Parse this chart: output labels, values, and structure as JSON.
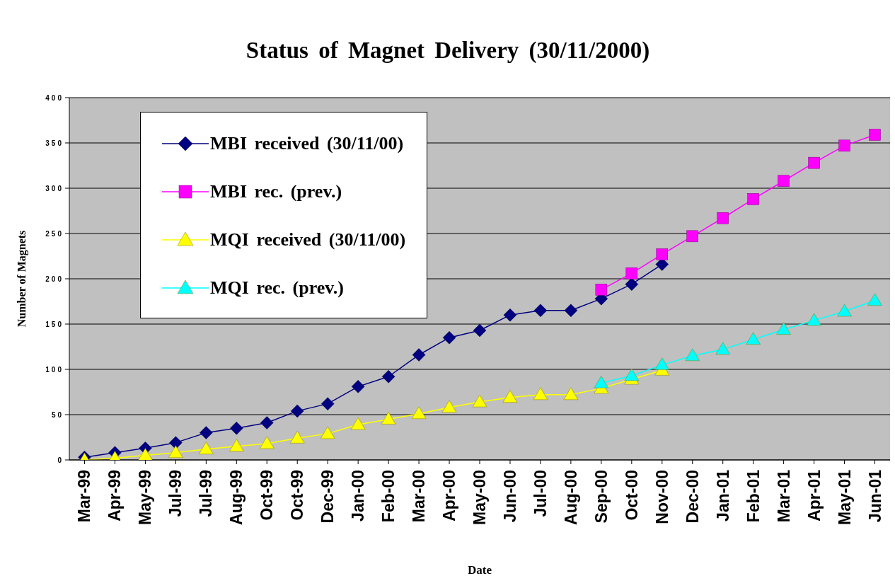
{
  "chart_data": {
    "type": "line",
    "title": "Status of Magnet Delivery (30/11/2000)",
    "xlabel": "Date",
    "ylabel": "Number of Magnets",
    "categories": [
      "Mar-99",
      "Apr-99",
      "May-99",
      "Jul-99",
      "Jul-99",
      "Aug-99",
      "Oct-99",
      "Oct-99",
      "Dec-99",
      "Jan-00",
      "Feb-00",
      "Mar-00",
      "Apr-00",
      "May-00",
      "Jun-00",
      "Jul-00",
      "Aug-00",
      "Sep-00",
      "Oct-00",
      "Nov-00",
      "Dec-00",
      "Jan-01",
      "Feb-01",
      "Mar-01",
      "Apr-01",
      "May-01",
      "Jun-01"
    ],
    "series": [
      {
        "name": "MBI received (30/11/00)",
        "color": "#000080",
        "marker": "diamond",
        "values": [
          3,
          8,
          13,
          19,
          30,
          35,
          41,
          54,
          62,
          81,
          92,
          116,
          135,
          143,
          160,
          165,
          165,
          178,
          194,
          216,
          null,
          null,
          null,
          null,
          null,
          null,
          null
        ]
      },
      {
        "name": "MBI rec. (prev.)",
        "color": "#ff00ff",
        "marker": "square",
        "values": [
          null,
          null,
          null,
          null,
          null,
          null,
          null,
          null,
          null,
          null,
          null,
          null,
          null,
          null,
          null,
          null,
          null,
          188,
          206,
          227,
          247,
          267,
          288,
          308,
          328,
          347,
          359
        ]
      },
      {
        "name": "MQI received (30/11/00)",
        "color": "#ffff00",
        "marker": "triangle",
        "values": [
          0,
          2,
          5,
          8,
          12,
          15,
          18,
          24,
          29,
          39,
          45,
          51,
          58,
          64,
          69,
          72,
          72,
          79,
          89,
          99,
          null,
          null,
          null,
          null,
          null,
          null,
          null
        ]
      },
      {
        "name": "MQI rec. (prev.)",
        "color": "#00ffff",
        "marker": "triangle",
        "values": [
          null,
          null,
          null,
          null,
          null,
          null,
          null,
          null,
          null,
          null,
          null,
          null,
          null,
          null,
          null,
          null,
          null,
          85,
          93,
          105,
          115,
          122,
          133,
          144,
          154,
          164,
          176
        ]
      }
    ],
    "ylim": [
      0,
      400
    ],
    "yticks": [
      0,
      50,
      100,
      150,
      200,
      250,
      300,
      350,
      400
    ],
    "grid": "y",
    "legend": "top left",
    "line_style": "solid"
  }
}
